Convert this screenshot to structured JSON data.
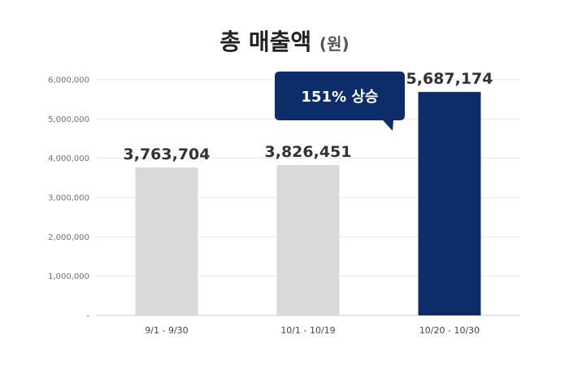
{
  "chart_data": {
    "type": "bar",
    "title": "총 매출액",
    "title_unit": "(원)",
    "categories": [
      "9/1 - 9/30",
      "10/1 - 10/19",
      "10/20 - 10/30"
    ],
    "values": [
      3763704,
      3826451,
      5687174
    ],
    "value_labels": [
      "3,763,704",
      "3,826,451",
      "5,687,174"
    ],
    "ylim": [
      0,
      6000000
    ],
    "yticks": [
      0,
      1000000,
      2000000,
      3000000,
      4000000,
      5000000,
      6000000
    ],
    "ytick_labels": [
      "-",
      "1,000,000",
      "2,000,000",
      "3,000,000",
      "4,000,000",
      "5,000,000",
      "6,000,000"
    ],
    "grid": true,
    "annotation": "151% 상승",
    "colors": {
      "default_bar": "#d9d9d9",
      "highlight_bar": "#0c2d69",
      "highlight_label": "#0c2d69",
      "default_label": "#333333"
    },
    "highlight_index": 2
  }
}
